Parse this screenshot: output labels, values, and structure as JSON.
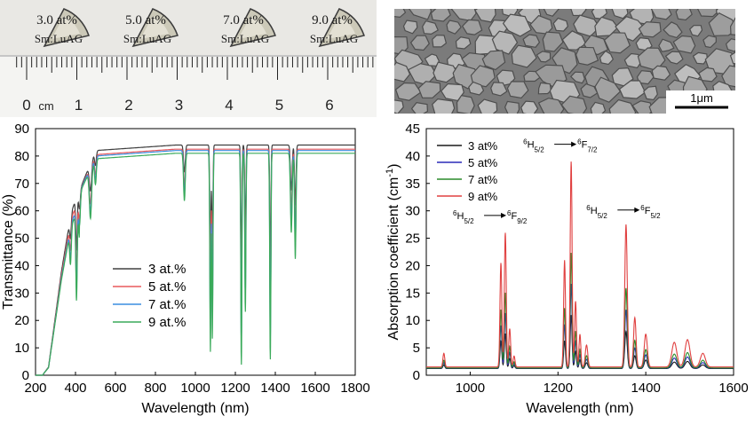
{
  "photo": {
    "samples": [
      {
        "conc": "3.0 at%",
        "name": "Sm:LuAG"
      },
      {
        "conc": "5.0 at%",
        "name": "Sm:LuAG"
      },
      {
        "conc": "7.0 at%",
        "name": "Sm:LuAG"
      },
      {
        "conc": "9.0 at%",
        "name": "Sm:LuAG"
      }
    ],
    "ruler_unit": "cm",
    "ruler_labels": [
      "0",
      "1",
      "2",
      "3",
      "4",
      "5",
      "6"
    ]
  },
  "sem": {
    "scale_bar": "1μm"
  },
  "chart_data": [
    {
      "type": "line",
      "title": "",
      "xlabel": "Wavelength (nm)",
      "ylabel": "Transmittance (%)",
      "xlim": [
        200,
        1800
      ],
      "ylim": [
        0,
        90
      ],
      "xticks": [
        200,
        400,
        600,
        800,
        1000,
        1200,
        1400,
        1600,
        1800
      ],
      "yticks": [
        0,
        10,
        20,
        30,
        40,
        50,
        60,
        70,
        80,
        90
      ],
      "legend_position": "center-left",
      "series": [
        {
          "name": "3 at.%",
          "color": "#404040",
          "plateau": 84,
          "dipScale": 0.55
        },
        {
          "name": "5 at.%",
          "color": "#e8585b",
          "plateau": 82.5,
          "dipScale": 0.75
        },
        {
          "name": "7 at.%",
          "color": "#3a8ee0",
          "plateau": 82,
          "dipScale": 0.9
        },
        {
          "name": "9 at.%",
          "color": "#3aaa5a",
          "plateau": 81,
          "dipScale": 1.0
        }
      ],
      "absorption_bands_nm": [
        {
          "center": 375,
          "width": 6,
          "depth": 20
        },
        {
          "center": 405,
          "width": 5,
          "depth": 45
        },
        {
          "center": 420,
          "width": 6,
          "depth": 15
        },
        {
          "center": 475,
          "width": 8,
          "depth": 20
        },
        {
          "center": 500,
          "width": 6,
          "depth": 10
        },
        {
          "center": 945,
          "width": 6,
          "depth": 18
        },
        {
          "center": 1075,
          "width": 4,
          "depth": 75
        },
        {
          "center": 1085,
          "width": 4,
          "depth": 70
        },
        {
          "center": 1230,
          "width": 4,
          "depth": 80
        },
        {
          "center": 1250,
          "width": 4,
          "depth": 60
        },
        {
          "center": 1375,
          "width": 4,
          "depth": 78
        },
        {
          "center": 1480,
          "width": 6,
          "depth": 30
        },
        {
          "center": 1500,
          "width": 5,
          "depth": 40
        }
      ]
    },
    {
      "type": "line",
      "title": "",
      "xlabel": "Wavelength (nm)",
      "ylabel": "Absorption coefficient (cm",
      "ylabel_sup": "-1",
      "ylabel_end": ")",
      "xlim": [
        900,
        1600
      ],
      "ylim": [
        0,
        45
      ],
      "xticks": [
        1000,
        1200,
        1400,
        1600
      ],
      "yticks": [
        0,
        5,
        10,
        15,
        20,
        25,
        30,
        35,
        40,
        45
      ],
      "legend_position": "top-left",
      "series": [
        {
          "name": "3 at%",
          "color": "#1a1a1a",
          "scale": 0.26
        },
        {
          "name": "5 at%",
          "color": "#2a2ab8",
          "scale": 0.41
        },
        {
          "name": "7 at%",
          "color": "#2a8a2a",
          "scale": 0.56
        },
        {
          "name": "9 at%",
          "color": "#e04040",
          "scale": 1.0
        }
      ],
      "baseline": 1.5,
      "peaks_9at": [
        {
          "center": 940,
          "width": 3,
          "height": 2.5
        },
        {
          "center": 1070,
          "width": 3,
          "height": 19
        },
        {
          "center": 1080,
          "width": 3,
          "height": 24.5
        },
        {
          "center": 1090,
          "width": 3,
          "height": 7
        },
        {
          "center": 1100,
          "width": 3,
          "height": 2
        },
        {
          "center": 1215,
          "width": 3,
          "height": 19.5
        },
        {
          "center": 1230,
          "width": 3,
          "height": 37.5
        },
        {
          "center": 1240,
          "width": 3,
          "height": 12
        },
        {
          "center": 1250,
          "width": 3,
          "height": 6
        },
        {
          "center": 1265,
          "width": 4,
          "height": 4
        },
        {
          "center": 1355,
          "width": 4,
          "height": 26
        },
        {
          "center": 1375,
          "width": 4,
          "height": 9
        },
        {
          "center": 1400,
          "width": 5,
          "height": 6
        },
        {
          "center": 1465,
          "width": 8,
          "height": 4.5
        },
        {
          "center": 1495,
          "width": 8,
          "height": 5
        },
        {
          "center": 1530,
          "width": 8,
          "height": 2.5
        }
      ],
      "annotations": [
        {
          "lower": "6",
          "lower_sub": "H",
          "lower_j": "5/2",
          "upper": "6",
          "upper_sub": "F",
          "upper_j": "7/2",
          "at_x": 1228,
          "at_y": 41.5
        },
        {
          "lower": "6",
          "lower_sub": "H",
          "lower_j": "5/2",
          "upper": "6",
          "upper_sub": "F",
          "upper_j": "9/2",
          "at_x": 1068,
          "at_y": 28.5
        },
        {
          "lower": "6",
          "lower_sub": "H",
          "lower_j": "5/2",
          "upper": "6",
          "upper_sub": "F",
          "upper_j": "5/2",
          "at_x": 1372,
          "at_y": 29.5
        }
      ]
    }
  ]
}
